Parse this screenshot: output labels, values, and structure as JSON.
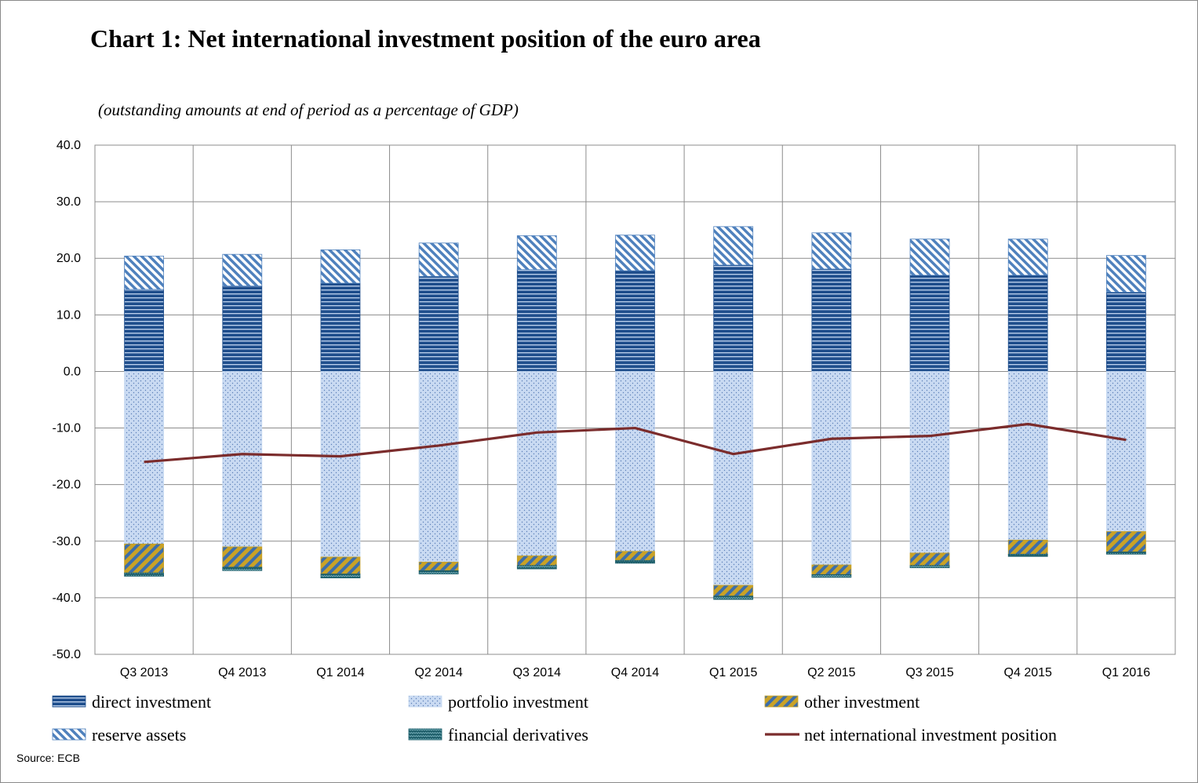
{
  "title": "Chart 1: Net international investment position of the euro area",
  "subtitle": "(outstanding amounts at end of period as a percentage of GDP)",
  "source": "Source: ECB",
  "chart_data": {
    "type": "bar",
    "stacked": true,
    "categories": [
      "Q3 2013",
      "Q4 2013",
      "Q1 2014",
      "Q2 2014",
      "Q3 2014",
      "Q4 2014",
      "Q1 2015",
      "Q2 2015",
      "Q3 2015",
      "Q4 2015",
      "Q1 2016"
    ],
    "ylim": [
      -50,
      40
    ],
    "yticks": [
      "40.0",
      "30.0",
      "20.0",
      "10.0",
      "0.0",
      "-10.0",
      "-20.0",
      "-30.0",
      "-40.0",
      "-50.0"
    ],
    "ytick_values": [
      40,
      30,
      20,
      10,
      0,
      -10,
      -20,
      -30,
      -40,
      -50
    ],
    "grid": true,
    "legend_position": "bottom",
    "series": [
      {
        "name": "direct investment",
        "kind": "bar",
        "color": "#1F4E8C",
        "values": [
          14.5,
          15.1,
          15.6,
          16.8,
          18.0,
          17.8,
          18.8,
          18.1,
          17.0,
          17.0,
          14.0
        ]
      },
      {
        "name": "reserve assets",
        "kind": "bar",
        "color": "#4F81BD",
        "values": [
          5.9,
          5.6,
          5.9,
          5.9,
          6.0,
          6.3,
          6.8,
          6.4,
          6.4,
          6.4,
          6.5
        ]
      },
      {
        "name": "portfolio investment",
        "kind": "bar",
        "color": "#C6D9F1",
        "values": [
          -30.5,
          -31.0,
          -32.8,
          -33.7,
          -32.6,
          -31.8,
          -37.8,
          -34.2,
          -32.1,
          -29.8,
          -28.3
        ]
      },
      {
        "name": "other investment",
        "kind": "bar",
        "color": "#C9A227",
        "values": [
          -5.1,
          -3.6,
          -3.0,
          -1.5,
          -1.7,
          -1.6,
          -1.9,
          -1.7,
          -2.2,
          -2.5,
          -3.6
        ]
      },
      {
        "name": "financial derivatives",
        "kind": "bar",
        "color": "#1F5F6B",
        "values": [
          -0.6,
          -0.6,
          -0.7,
          -0.6,
          -0.6,
          -0.5,
          -0.6,
          -0.5,
          -0.4,
          -0.4,
          -0.4
        ]
      },
      {
        "name": "net international investment position",
        "kind": "line",
        "color": "#7B2C2C",
        "values": [
          -16.0,
          -14.6,
          -15.0,
          -13.1,
          -10.8,
          -10.0,
          -14.6,
          -11.9,
          -11.4,
          -9.3,
          -12.1
        ]
      }
    ],
    "legend": {
      "rows": [
        [
          "direct investment",
          "portfolio investment",
          "other investment"
        ],
        [
          "reserve assets",
          "financial derivatives",
          "net international investment position"
        ]
      ]
    }
  }
}
